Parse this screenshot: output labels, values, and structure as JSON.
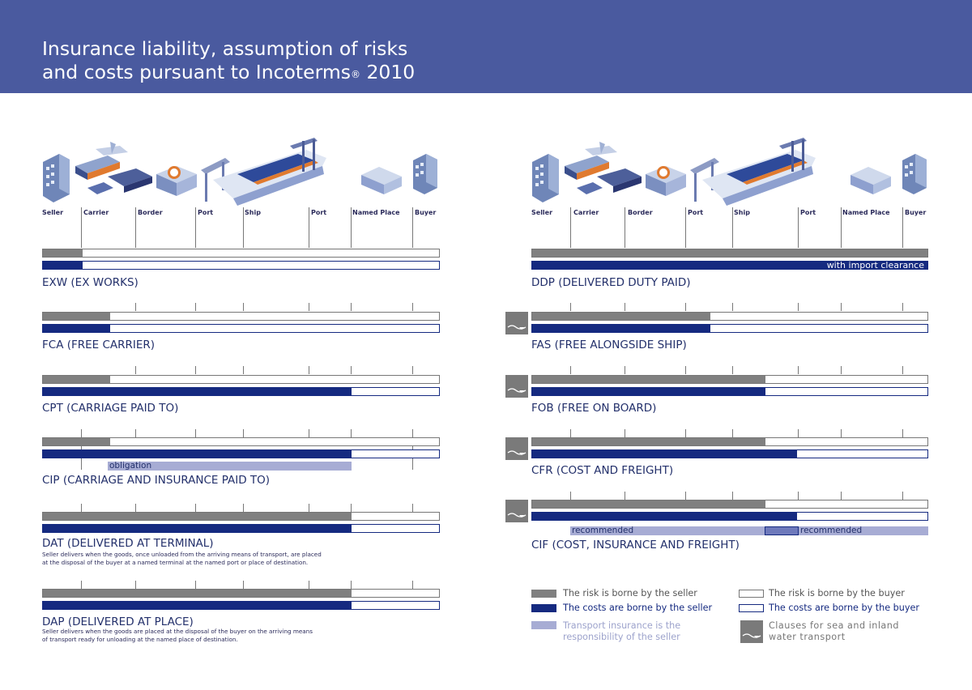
{
  "header": {
    "title_line1": "Insurance liability, assumption of risks",
    "title_line2_pre": "and costs pursuant to Incoterms",
    "title_reg": "®",
    "title_year": " 2010"
  },
  "columns": [
    "Seller",
    "Carrier",
    "Border",
    "Port",
    "Ship",
    "Port",
    "Named Place",
    "Buyer"
  ],
  "terms": {
    "exw": {
      "name": "EXW (EX WORKS)",
      "risk_pct": 10,
      "cost_pct": 10
    },
    "fca": {
      "name": "FCA (FREE CARRIER)",
      "risk_pct": 17,
      "cost_pct": 17
    },
    "cpt": {
      "name": "CPT (CARRIAGE PAID TO)",
      "risk_pct": 17,
      "cost_pct": 78
    },
    "cip": {
      "name": "CIP (CARRIAGE AND INSURANCE PAID TO)",
      "risk_pct": 17,
      "cost_pct": 78,
      "insurance_label": "obligation"
    },
    "dat": {
      "name": "DAT (DELIVERED AT TERMINAL)",
      "risk_pct": 78,
      "cost_pct": 78,
      "desc_line1": "Seller delivers when the goods, once unloaded from the arriving means of transport, are placed",
      "desc_line2": "at the disposal of the buyer at a named terminal at the named port or place of destination."
    },
    "dap": {
      "name": "DAP (DELIVERED AT PLACE)",
      "risk_pct": 78,
      "cost_pct": 78,
      "desc_line1": "Seller delivers when the goods are placed at the disposal of the buyer on the arriving means",
      "desc_line2": "of transport ready for unloading at the named place of destination."
    },
    "ddp": {
      "name": "DDP (DELIVERED DUTY PAID)",
      "risk_pct": 100,
      "cost_pct": 100,
      "cost_note": "with import clearance"
    },
    "fas": {
      "name": "FAS (FREE ALONGSIDE SHIP)",
      "risk_pct": 45,
      "cost_pct": 45
    },
    "fob": {
      "name": "FOB (FREE ON BOARD)",
      "risk_pct": 59,
      "cost_pct": 59
    },
    "cfr": {
      "name": "CFR (COST AND FREIGHT)",
      "risk_pct": 59,
      "cost_pct": 67
    },
    "cif": {
      "name": "CIF (COST, INSURANCE AND FREIGHT)",
      "risk_pct": 59,
      "cost_pct": 67,
      "ins_label1": "recommended",
      "ins_label2": "recommended"
    }
  },
  "legend": {
    "risk_seller": "The risk is borne by the seller",
    "risk_buyer": "The risk is borne by the buyer",
    "cost_seller": "The costs are borne by the seller",
    "cost_buyer": "The costs are borne by the buyer",
    "insurance_line1": "Transport insurance is the",
    "insurance_line2": "responsibility of the seller",
    "sea_line1": "Clauses for sea and inland",
    "sea_line2": "water transport"
  },
  "colors": {
    "header": "#4a5a9f",
    "risk": "#808080",
    "cost": "#152a80",
    "insurance": "#a7acd4"
  }
}
